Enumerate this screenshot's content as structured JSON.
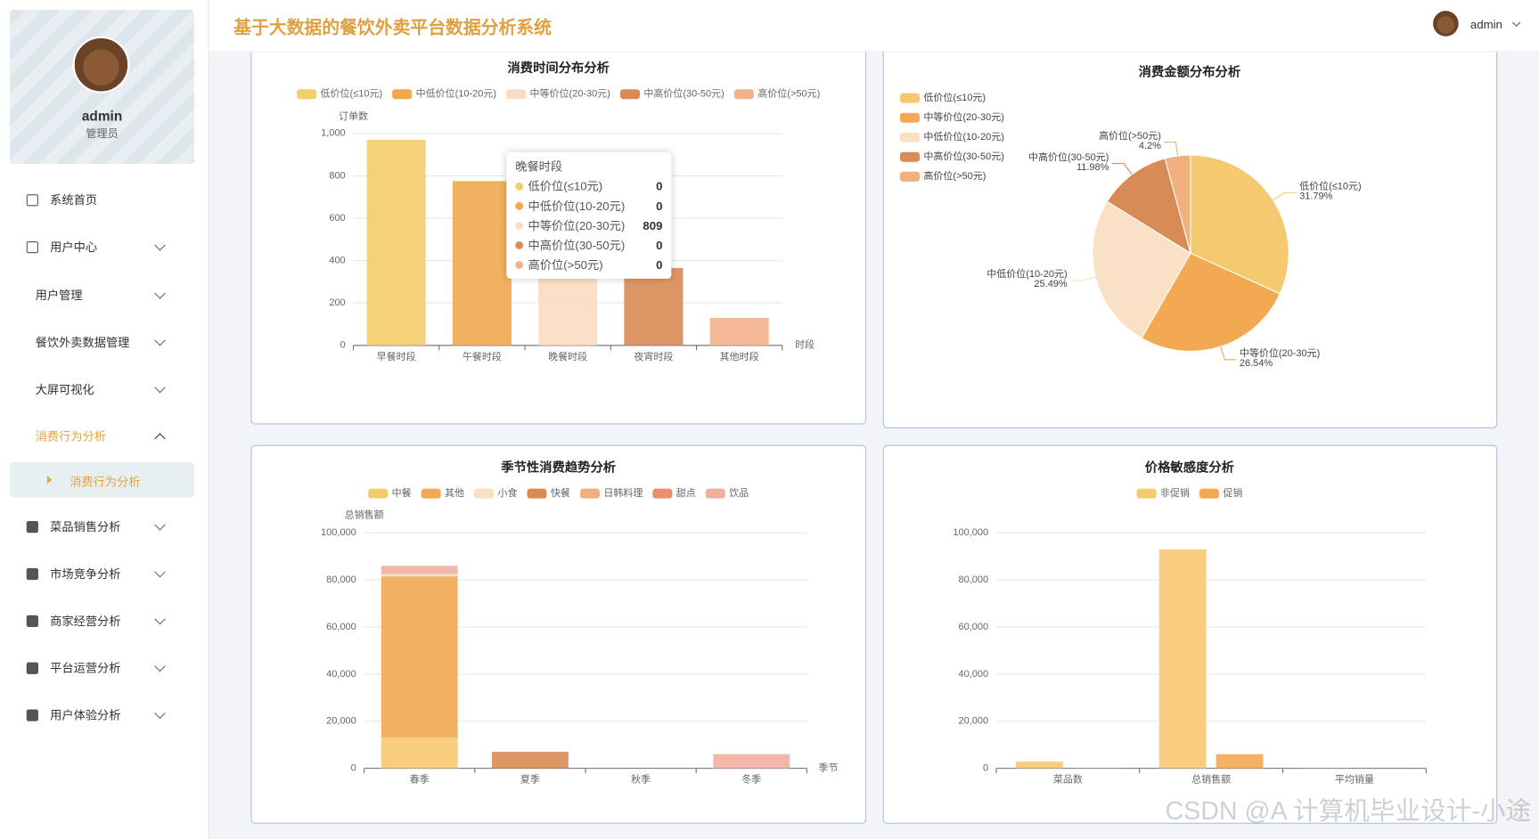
{
  "header": {
    "title": "基于大数据的餐饮外卖平台数据分析系统",
    "user": "admin"
  },
  "sidebar": {
    "user": "admin",
    "role": "管理员",
    "menu": [
      "系统首页",
      "用户中心",
      "用户管理",
      "餐饮外卖数据管理",
      "大屏可视化",
      "消费行为分析",
      "菜品销售分析",
      "市场竞争分析",
      "商家经营分析",
      "平台运营分析",
      "用户体验分析"
    ],
    "active_submenu": "消费行为分析"
  },
  "chart_data": [
    {
      "type": "bar",
      "stacked": true,
      "title": "消费时间分布分析",
      "y_axis_label": "订单数",
      "x_axis_label": "时段",
      "categories": [
        "早餐时段",
        "午餐时段",
        "晚餐时段",
        "夜宵时段",
        "其他时段"
      ],
      "series": [
        {
          "name": "低价位(≤10元)",
          "color": "#f5cc6e",
          "values": [
            970,
            0,
            0,
            0,
            0
          ]
        },
        {
          "name": "中低价位(10-20元)",
          "color": "#f0a84f",
          "values": [
            0,
            775,
            0,
            0,
            0
          ]
        },
        {
          "name": "中等价位(20-30元)",
          "color": "#fbdcc0",
          "values": [
            0,
            0,
            809,
            0,
            0
          ]
        },
        {
          "name": "中高价位(30-50元)",
          "color": "#d98a55",
          "values": [
            0,
            0,
            0,
            365,
            0
          ]
        },
        {
          "name": "高价位(>50元)",
          "color": "#f2b38a",
          "values": [
            0,
            0,
            0,
            0,
            130
          ]
        }
      ],
      "ylim": [
        0,
        1000
      ],
      "yticks": [
        0,
        200,
        400,
        600,
        800,
        {
          "value": 1000,
          "label": "1,000"
        }
      ],
      "grid": true
    },
    {
      "type": "pie",
      "title": "消费金额分布分析",
      "categories": [
        "低价位(≤10元)",
        "中等价位(20-30元)",
        "中低价位(10-20元)",
        "中高价位(30-50元)",
        "高价位(>50元)"
      ],
      "values": [
        31.79,
        26.54,
        25.49,
        11.98,
        4.2
      ],
      "value_labels": [
        "31.79%",
        "26.54%",
        "25.49%",
        "11.98%",
        "4.2%"
      ],
      "colors": [
        "#f5c96f",
        "#f2a952",
        "#fae0c4",
        "#d98b55",
        "#f2b07f"
      ]
    },
    {
      "type": "bar",
      "stacked": true,
      "title": "季节性消费趋势分析",
      "y_axis_label": "总销售额",
      "x_axis_label": "季节",
      "categories": [
        "春季",
        "夏季",
        "秋季",
        "冬季"
      ],
      "series": [
        {
          "name": "中餐",
          "color": "#f5c96f",
          "values": [
            13000,
            0,
            0,
            0
          ]
        },
        {
          "name": "其他",
          "color": "#f2a952",
          "values": [
            68500,
            0,
            0,
            0
          ]
        },
        {
          "name": "小食",
          "color": "#fae0c4",
          "values": [
            1000,
            0,
            0,
            0
          ]
        },
        {
          "name": "快餐",
          "color": "#d98b55",
          "values": [
            0,
            7000,
            0,
            0
          ]
        },
        {
          "name": "日韩料理",
          "color": "#f2b07f",
          "values": [
            0,
            0,
            0,
            0
          ]
        },
        {
          "name": "甜点",
          "color": "#e88f70",
          "values": [
            0,
            0,
            0,
            0
          ]
        },
        {
          "name": "饮品",
          "color": "#f0b0a0",
          "values": [
            3500,
            0,
            0,
            6000
          ]
        }
      ],
      "ylim": [
        0,
        100000
      ],
      "yticks": [
        0,
        {
          "value": 20000,
          "label": "20,000"
        },
        {
          "value": 40000,
          "label": "40,000"
        },
        {
          "value": 60000,
          "label": "60,000"
        },
        {
          "value": 80000,
          "label": "80,000"
        },
        {
          "value": 100000,
          "label": "100,000"
        }
      ],
      "grid": true
    },
    {
      "type": "bar",
      "stacked": false,
      "title": "价格敏感度分析",
      "categories": [
        "菜品数",
        "总销售额",
        "平均销量"
      ],
      "series": [
        {
          "name": "非促销",
          "color": "#f5c96f",
          "values": [
            2800,
            93000,
            50
          ]
        },
        {
          "name": "促销",
          "color": "#f2a952",
          "values": [
            150,
            6000,
            10
          ]
        }
      ],
      "ylim": [
        0,
        100000
      ],
      "yticks": [
        0,
        {
          "value": 20000,
          "label": "20,000"
        },
        {
          "value": 40000,
          "label": "40,000"
        },
        {
          "value": 60000,
          "label": "60,000"
        },
        {
          "value": 80000,
          "label": "80,000"
        },
        {
          "value": 100000,
          "label": "100,000"
        }
      ],
      "grid": true
    }
  ],
  "watermark": "CSDN @A 计算机毕业设计-小途"
}
